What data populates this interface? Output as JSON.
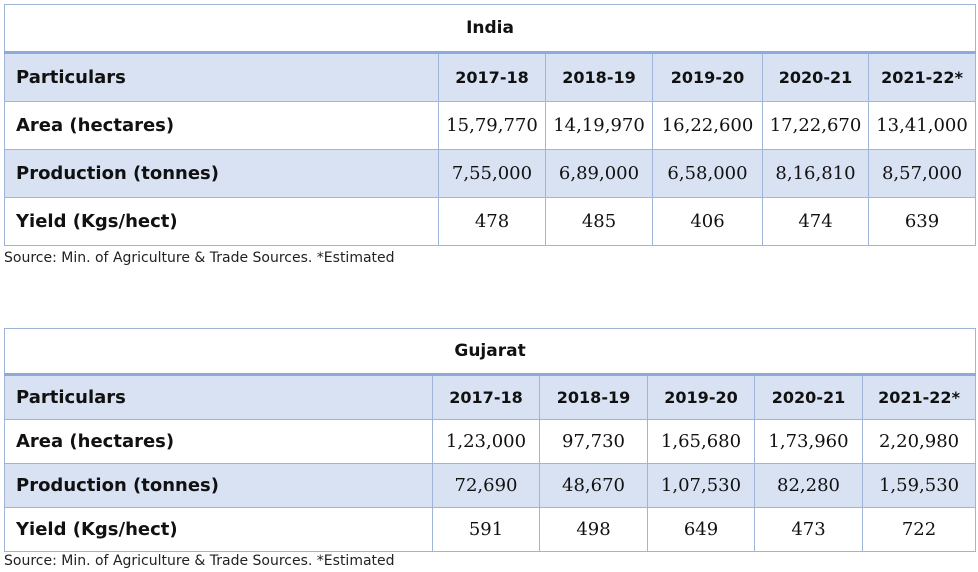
{
  "tables": [
    {
      "title": "India",
      "header": [
        "Particulars",
        "2017-18",
        "2018-19",
        "2019-20",
        "2020-21",
        "2021-22*"
      ],
      "rows": [
        {
          "label": "Area (hectares)",
          "values": [
            "15,79,770",
            "14,19,970",
            "16,22,600",
            "17,22,670",
            "13,41,000"
          ]
        },
        {
          "label": "Production (tonnes)",
          "values": [
            "7,55,000",
            "6,89,000",
            "6,58,000",
            "8,16,810",
            "8,57,000"
          ]
        },
        {
          "label": "Yield (Kgs/hect)",
          "values": [
            "478",
            "485",
            "406",
            "474",
            "639"
          ]
        }
      ],
      "source": "Source: Min. of Agriculture & Trade Sources. *Estimated"
    },
    {
      "title": "Gujarat",
      "header": [
        "Particulars",
        "2017-18",
        "2018-19",
        "2019-20",
        "2020-21",
        "2021-22*"
      ],
      "rows": [
        {
          "label": "Area (hectares)",
          "values": [
            "1,23,000",
            "97,730",
            "1,65,680",
            "1,73,960",
            "2,20,980"
          ]
        },
        {
          "label": "Production (tonnes)",
          "values": [
            "72,690",
            "48,670",
            "1,07,530",
            "82,280",
            "1,59,530"
          ]
        },
        {
          "label": "Yield (Kgs/hect)",
          "values": [
            "591",
            "498",
            "649",
            "473",
            "722"
          ]
        }
      ],
      "source": "Source: Min. of Agriculture & Trade Sources. *Estimated"
    }
  ]
}
